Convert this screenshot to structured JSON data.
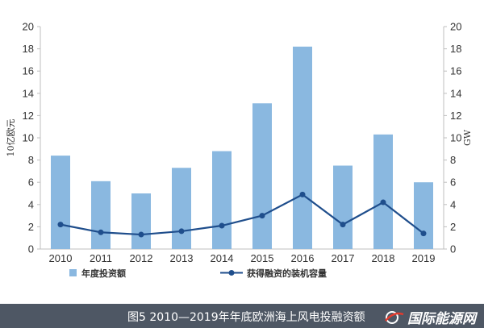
{
  "chart_data": {
    "type": "bar",
    "categories": [
      "2010",
      "2011",
      "2012",
      "2013",
      "2014",
      "2015",
      "2016",
      "2017",
      "2018",
      "2019"
    ],
    "series": [
      {
        "name": "年度投资额",
        "type": "bar",
        "axis": "left",
        "color": "#8ab8e0",
        "values": [
          8.4,
          6.1,
          5.0,
          7.3,
          8.8,
          13.1,
          18.2,
          7.5,
          10.3,
          6.0
        ]
      },
      {
        "name": "获得融资的装机容量",
        "type": "line",
        "axis": "right",
        "color": "#1f4e8c",
        "values": [
          2.2,
          1.5,
          1.3,
          1.6,
          2.1,
          3.0,
          4.9,
          2.2,
          4.2,
          1.4
        ]
      }
    ],
    "ylabel": "10亿欧元",
    "y2label": "GW",
    "ylim": [
      0,
      20
    ],
    "y2lim": [
      0,
      20
    ],
    "yticks": [
      0,
      2,
      4,
      6,
      8,
      10,
      12,
      14,
      16,
      18,
      20
    ],
    "grid": false,
    "legend": "bottom"
  },
  "caption": "图5 2010—2019年年底欧洲海上风电投融资额",
  "watermark": "国际能源网"
}
